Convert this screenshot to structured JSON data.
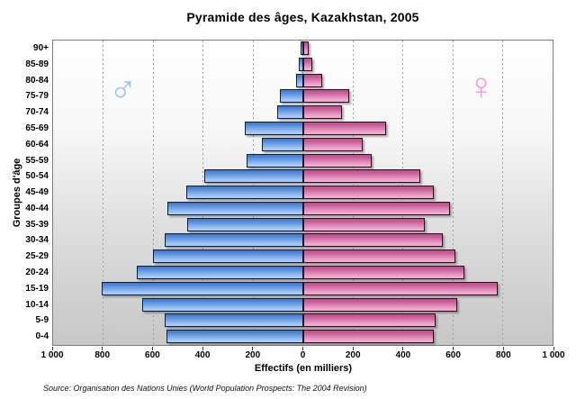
{
  "title": "Pyramide des âges, Kazakhstan, 2005",
  "source": "Source: Organisation des Nations Unies (World Population Prospects: The 2004 Revision)",
  "chart_data": {
    "type": "bar",
    "subtype": "population-pyramid",
    "title": "Pyramide des âges, Kazakhstan, 2005",
    "xlabel": "Effectifs (en milliers)",
    "ylabel": "Groupes d'âge",
    "units": "milliers",
    "xlim": [
      -1000,
      1000
    ],
    "grid": "vertical-dashed",
    "x_tick_values": [
      -1000,
      -800,
      -600,
      -400,
      -200,
      0,
      200,
      400,
      600,
      800,
      1000
    ],
    "x_tick_labels": [
      "1 000",
      "800",
      "600",
      "400",
      "200",
      "0",
      "200",
      "400",
      "600",
      "800",
      "1 000"
    ],
    "categories_top_to_bottom": [
      "90+",
      "85-89",
      "80-84",
      "75-79",
      "70-74",
      "65-69",
      "60-64",
      "55-59",
      "50-54",
      "45-49",
      "40-44",
      "35-39",
      "30-34",
      "25-29",
      "20-24",
      "15-19",
      "10-14",
      "5-9",
      "0-4"
    ],
    "series": [
      {
        "name": "Hommes",
        "side": "left",
        "color": "#5c90dc",
        "values": [
          9,
          15,
          28,
          91,
          101,
          234,
          165,
          227,
          396,
          467,
          544,
          463,
          554,
          600,
          666,
          806,
          643,
          553,
          546
        ]
      },
      {
        "name": "Femmes",
        "side": "right",
        "color": "#e18fbc",
        "values": [
          23,
          38,
          77,
          184,
          155,
          334,
          239,
          276,
          472,
          525,
          590,
          488,
          562,
          610,
          646,
          781,
          619,
          532,
          524
        ]
      }
    ],
    "male_symbol": "♂",
    "female_symbol": "♀",
    "colors": {
      "male_bar": "#5c90dc",
      "female_bar": "#e18fbc",
      "male_symbol": "#9cc4f2",
      "female_symbol": "#f9a0d0"
    }
  }
}
